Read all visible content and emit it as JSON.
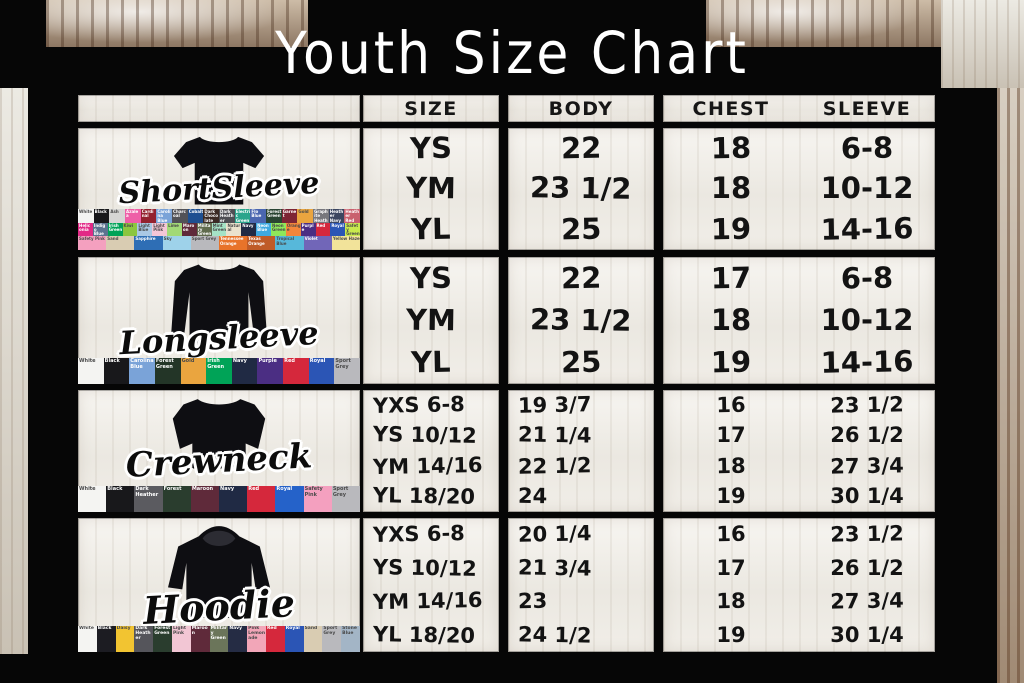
{
  "title": "Youth Size Chart",
  "table": {
    "headers": {
      "size": "SIZE",
      "body": "BODY",
      "chest": "CHEST",
      "sleeve": "SLEEVE"
    },
    "sections": [
      {
        "label": "ShortSleeve",
        "rows": [
          {
            "size": "YS",
            "body": "22",
            "chest": "18",
            "sleeve": "6-8"
          },
          {
            "size": "YM",
            "body": "23 1/2",
            "chest": "18",
            "sleeve": "10-12"
          },
          {
            "size": "YL",
            "body": "25",
            "chest": "19",
            "sleeve": "14-16"
          }
        ],
        "swatch_rows": [
          [
            {
              "name": "White",
              "hex": "#f4f4f2"
            },
            {
              "name": "Black",
              "hex": "#18181b"
            },
            {
              "name": "Ash",
              "hex": "#d6d6d4"
            },
            {
              "name": "Azalea",
              "hex": "#ee5fa7"
            },
            {
              "name": "Cardinal",
              "hex": "#93222f"
            },
            {
              "name": "Carolina Blue",
              "hex": "#7aa3d8"
            },
            {
              "name": "Charcoal",
              "hex": "#525257"
            },
            {
              "name": "Cobalt",
              "hex": "#1e4f91"
            },
            {
              "name": "Dark Chocolate",
              "hex": "#3b2a24"
            },
            {
              "name": "Dark Heather",
              "hex": "#4f4f54"
            },
            {
              "name": "Electric Green",
              "hex": "#2aa58c"
            },
            {
              "name": "Flo Blue",
              "hex": "#4a66b0"
            },
            {
              "name": "Forest Green",
              "hex": "#2a4432"
            },
            {
              "name": "Garnet",
              "hex": "#7d2535"
            },
            {
              "name": "Gold",
              "hex": "#eaa53f"
            },
            {
              "name": "Graphite Heather",
              "hex": "#77777c"
            },
            {
              "name": "Heather Navy",
              "hex": "#3c4660"
            },
            {
              "name": "Heather Red",
              "hex": "#c9606e"
            }
          ],
          [
            {
              "name": "Heliconia",
              "hex": "#e22a86"
            },
            {
              "name": "Indigo Blue",
              "hex": "#5c7390"
            },
            {
              "name": "Irish Green",
              "hex": "#00a357"
            },
            {
              "name": "Kiwi",
              "hex": "#8cc63f"
            },
            {
              "name": "Light Blue",
              "hex": "#aac8e4"
            },
            {
              "name": "Light Pink",
              "hex": "#f4c6d7"
            },
            {
              "name": "Lime",
              "hex": "#a2d977"
            },
            {
              "name": "Maroon",
              "hex": "#5f2a3a"
            },
            {
              "name": "Military Green",
              "hex": "#606b4d"
            },
            {
              "name": "Mint Green",
              "hex": "#a5e3c6"
            },
            {
              "name": "Natural",
              "hex": "#eae2cd"
            },
            {
              "name": "Navy",
              "hex": "#202a44"
            },
            {
              "name": "Neon Blue",
              "hex": "#3fa9e0"
            },
            {
              "name": "Neon Green",
              "hex": "#8ee85a"
            },
            {
              "name": "Orange",
              "hex": "#f4863b"
            },
            {
              "name": "Purple",
              "hex": "#4b2e83"
            },
            {
              "name": "Red",
              "hex": "#d5283c"
            },
            {
              "name": "Royal",
              "hex": "#2b55b5"
            },
            {
              "name": "Safety Green",
              "hex": "#c9ea4e"
            }
          ],
          [
            {
              "name": "Safety Pink",
              "hex": "#f4a0bf"
            },
            {
              "name": "Sand",
              "hex": "#d9ccb2"
            },
            {
              "name": "Sapphire",
              "hex": "#2e6eb5"
            },
            {
              "name": "Sky",
              "hex": "#9ed2ea"
            },
            {
              "name": "Sport Grey",
              "hex": "#b9b9bd"
            },
            {
              "name": "Tennessee Orange",
              "hex": "#e8732a"
            },
            {
              "name": "Texas Orange",
              "hex": "#bf5b28"
            },
            {
              "name": "Tropical Blue",
              "hex": "#57b8da"
            },
            {
              "name": "Violet",
              "hex": "#7166b8"
            },
            {
              "name": "Yellow Haze",
              "hex": "#f2e39a"
            }
          ]
        ]
      },
      {
        "label": "Longsleeve",
        "rows": [
          {
            "size": "YS",
            "body": "22",
            "chest": "17",
            "sleeve": "6-8"
          },
          {
            "size": "YM",
            "body": "23 1/2",
            "chest": "18",
            "sleeve": "10-12"
          },
          {
            "size": "YL",
            "body": "25",
            "chest": "19",
            "sleeve": "14-16"
          }
        ],
        "swatch_rows": [
          [
            {
              "name": "White",
              "hex": "#f4f4f2"
            },
            {
              "name": "Black",
              "hex": "#18181b"
            },
            {
              "name": "Carolina Blue",
              "hex": "#7aa3d8"
            },
            {
              "name": "Forest Green",
              "hex": "#233527"
            },
            {
              "name": "Gold",
              "hex": "#eaa53f"
            },
            {
              "name": "Irish Green",
              "hex": "#00a357"
            },
            {
              "name": "Navy",
              "hex": "#202a44"
            },
            {
              "name": "Purple",
              "hex": "#4b2e83"
            },
            {
              "name": "Red",
              "hex": "#d5283c"
            },
            {
              "name": "Royal",
              "hex": "#2b55b5"
            },
            {
              "name": "Sport Grey",
              "hex": "#b9b9bd"
            }
          ]
        ]
      },
      {
        "label": "Crewneck",
        "rows": [
          {
            "size": "YXS 6-8",
            "body": "19 3/7",
            "chest": "16",
            "sleeve": "23 1/2"
          },
          {
            "size": "YS 10/12",
            "body": "21 1/4",
            "chest": "17",
            "sleeve": "26 1/2"
          },
          {
            "size": "YM 14/16",
            "body": "22 1/2",
            "chest": "18",
            "sleeve": "27 3/4"
          },
          {
            "size": "YL 18/20",
            "body": "24",
            "chest": "19",
            "sleeve": "30 1/4"
          }
        ],
        "swatch_rows": [
          [
            {
              "name": "White",
              "hex": "#f4f4f2"
            },
            {
              "name": "Black",
              "hex": "#18181b"
            },
            {
              "name": "Dark Heather",
              "hex": "#5b5b60"
            },
            {
              "name": "Forest",
              "hex": "#2a3d2e"
            },
            {
              "name": "Maroon",
              "hex": "#5f2a3a"
            },
            {
              "name": "Navy",
              "hex": "#202a44"
            },
            {
              "name": "Red",
              "hex": "#d5283c"
            },
            {
              "name": "Royal",
              "hex": "#2562c9"
            },
            {
              "name": "Safety Pink",
              "hex": "#f4a0bf"
            },
            {
              "name": "Sport Grey",
              "hex": "#b9b9bd"
            }
          ]
        ]
      },
      {
        "label": "Hoodie",
        "rows": [
          {
            "size": "YXS 6-8",
            "body": "20 1/4",
            "chest": "16",
            "sleeve": "23 1/2"
          },
          {
            "size": "YS 10/12",
            "body": "21 3/4",
            "chest": "17",
            "sleeve": "26 1/2"
          },
          {
            "size": "YM 14/16",
            "body": "23",
            "chest": "18",
            "sleeve": "27 3/4"
          },
          {
            "size": "YL 18/20",
            "body": "24 1/2",
            "chest": "19",
            "sleeve": "30 1/4"
          }
        ],
        "swatch_rows": [
          [
            {
              "name": "White",
              "hex": "#f4f4f2"
            },
            {
              "name": "Black",
              "hex": "#1c1c22"
            },
            {
              "name": "Daisy",
              "hex": "#f2c431"
            },
            {
              "name": "Dark Heather",
              "hex": "#55555b"
            },
            {
              "name": "Forest Green",
              "hex": "#2a3d2e"
            },
            {
              "name": "Light Pink",
              "hex": "#f2c6d4"
            },
            {
              "name": "Maroon",
              "hex": "#5f2a3a"
            },
            {
              "name": "Military Green",
              "hex": "#6b755a"
            },
            {
              "name": "Navy",
              "hex": "#252c44"
            },
            {
              "name": "Pink Lemonade",
              "hex": "#f2a6b8"
            },
            {
              "name": "Red",
              "hex": "#d5283c"
            },
            {
              "name": "Royal",
              "hex": "#2b55b5"
            },
            {
              "name": "Sand",
              "hex": "#d9ccb2"
            },
            {
              "name": "Sport Grey",
              "hex": "#b9b9bd"
            },
            {
              "name": "Stone Blue",
              "hex": "#a3b5c6"
            }
          ]
        ]
      }
    ]
  }
}
